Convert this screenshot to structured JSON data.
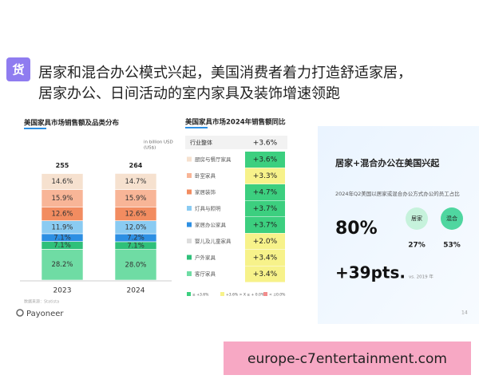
{
  "header": {
    "icon": "货",
    "title_lines": [
      "居家和混合办公模式兴起，美国消费者着力打造舒适家居，",
      "居家办公、日间活动的室内家具及装饰增速领跑"
    ]
  },
  "left_chart": {
    "title": "美国家具市场销售额及品类分布",
    "unit_note": [
      "in billion USD",
      "(US$)"
    ],
    "categories": [
      "2023",
      "2024"
    ],
    "totals": [
      255,
      264
    ],
    "series": [
      {
        "color": "#6fdca4",
        "values": [
          28.2,
          28.0
        ],
        "value_labels": [
          "28.2%",
          "28.0%"
        ]
      },
      {
        "color": "#2fc07a",
        "values": [
          7.1,
          7.1
        ],
        "value_labels": [
          "7.1%",
          "7.1%"
        ]
      },
      {
        "color": "#2d8fe3",
        "values": [
          7.1,
          7.2
        ],
        "value_labels": [
          "7.1%",
          "7.2%"
        ]
      },
      {
        "color": "#8acbf2",
        "values": [
          11.9,
          12.0
        ],
        "value_labels": [
          "11.9%",
          "12.0%"
        ]
      },
      {
        "color": "#f28c60",
        "values": [
          12.6,
          12.6
        ],
        "value_labels": [
          "12.6%",
          "12.6%"
        ]
      },
      {
        "color": "#f8b597",
        "values": [
          15.9,
          15.9
        ],
        "value_labels": [
          "15.9%",
          "15.9%"
        ]
      },
      {
        "color": "#f6e1cf",
        "values": [
          14.6,
          14.7
        ],
        "value_labels": [
          "14.6%",
          "14.7%"
        ]
      }
    ],
    "source": "数据来源：Statista"
  },
  "logo": "Payoneer",
  "middle_table": {
    "title": "美国家具市场2024年销售额同比",
    "header": [
      "行业整体",
      "+3.6%"
    ],
    "rows": [
      {
        "icon_color": "#f6e1cf",
        "label": "厨房与餐厅家具",
        "value": "+3.6%",
        "color": "#3ccf7f"
      },
      {
        "icon_color": "#f8b597",
        "label": "卧室家具",
        "value": "+3.3%",
        "color": "#f7f28a"
      },
      {
        "icon_color": "#f28c60",
        "label": "家居装饰",
        "value": "+4.7%",
        "color": "#3ccf7f"
      },
      {
        "icon_color": "#8acbf2",
        "label": "灯具与照明",
        "value": "+3.7%",
        "color": "#3ccf7f"
      },
      {
        "icon_color": "#2d8fe3",
        "label": "家居办公家具",
        "value": "+3.7%",
        "color": "#3ccf7f"
      },
      {
        "icon_color": "#dddddd",
        "label": "婴儿及儿童家具",
        "value": "+2.0%",
        "color": "#f7f28a"
      },
      {
        "icon_color": "#2fc07a",
        "label": "户外家具",
        "value": "+3.4%",
        "color": "#f7f28a"
      },
      {
        "icon_color": "#6fdca4",
        "label": "客厅家具",
        "value": "+3.4%",
        "color": "#f7f28a"
      }
    ],
    "legend": [
      {
        "label": "≥ +3.6%",
        "color": "#3ccf7f"
      },
      {
        "label": "+3.6% > X ≥ + 0.0%",
        "color": "#f7f28a"
      },
      {
        "label": "< ±0.0%",
        "color": "#f28c8c"
      }
    ]
  },
  "right_panel": {
    "title": "居家+混合办公在美国兴起",
    "subtitle": "2024年Q2美国以居家或混合办公方式办公的员工占比",
    "big_value": "80%",
    "big_change": "+39pts.",
    "note": "vs. 2019 年",
    "circles": [
      {
        "label": "居家",
        "value": "27%",
        "color": "#c6f2dc"
      },
      {
        "label": "混合",
        "value": "53%",
        "color": "#4fd6a0"
      }
    ],
    "page_number": "14"
  },
  "watermark": "europe-c7entertainment.com"
}
